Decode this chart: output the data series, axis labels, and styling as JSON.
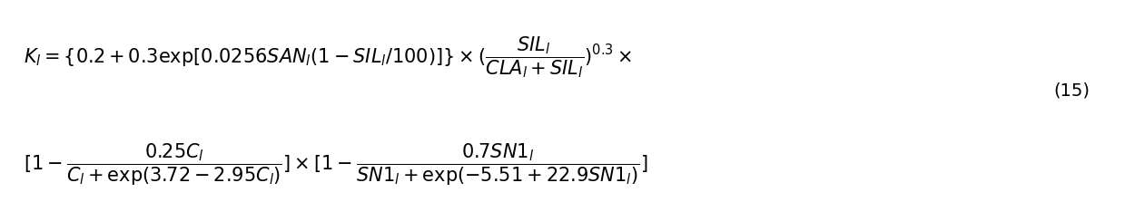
{
  "line1": "$K_l = \\{0.2 + 0.3\\exp[0.0256SAN_l(1 - SIL_l/100)]\\} \\times (\\dfrac{SIL_l}{CLA_l + SIL_l})^{0.3} \\times$",
  "line2": "$[1 - \\dfrac{0.25C_l}{C_l + \\exp(3.72 - 2.95C_l)}] \\times [1 - \\dfrac{0.7SN1_l}{SN1_l + \\exp(-5.51 + 22.9SN1_l)}]$",
  "equation_number": "(15)",
  "bg_color": "#ffffff",
  "text_color": "#000000",
  "fontsize_main": 15,
  "fontsize_eqnum": 14,
  "fig_width": 12.39,
  "fig_height": 2.23,
  "dpi": 100
}
